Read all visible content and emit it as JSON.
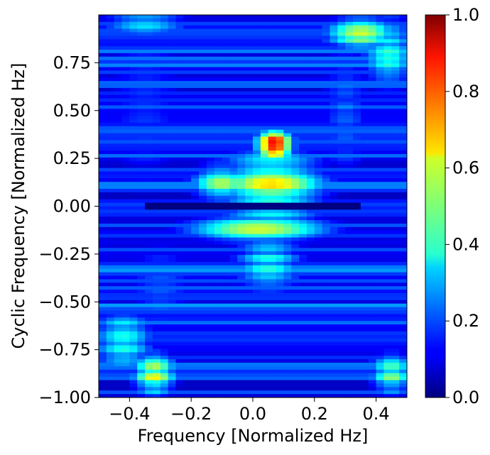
{
  "chart_data": {
    "type": "heatmap",
    "title": "",
    "xlabel": "Frequency [Normalized Hz]",
    "ylabel": "Cyclic Frequency [Normalized Hz]",
    "xlim": [
      -0.5,
      0.5
    ],
    "ylim": [
      -1.0,
      1.0
    ],
    "x_ticks": [
      -0.4,
      -0.2,
      0.0,
      0.2,
      0.4
    ],
    "x_tick_labels": [
      "−0.4",
      "−0.2",
      "0.0",
      "0.2",
      "0.4"
    ],
    "y_ticks": [
      0.75,
      0.5,
      0.25,
      0.0,
      -0.25,
      -0.5,
      -0.75,
      -1.0
    ],
    "y_tick_labels": [
      "0.75",
      "0.50",
      "0.25",
      "0.00",
      "−0.25",
      "−0.50",
      "−0.75",
      "−1.00"
    ],
    "colormap": "jet",
    "clim": [
      0.0,
      1.0
    ],
    "colorbar_ticks": [
      0.0,
      0.2,
      0.4,
      0.6,
      0.8,
      1.0
    ],
    "colorbar_tick_labels": [
      "0.0",
      "0.2",
      "0.4",
      "0.6",
      "0.8",
      "1.0"
    ],
    "grid": false,
    "features": [
      {
        "x": 0.07,
        "y": 0.32,
        "sx": 0.04,
        "sy": 0.05,
        "value": 0.98
      },
      {
        "x": 0.06,
        "y": 0.1,
        "sx": 0.12,
        "sy": 0.14,
        "value": 0.55
      },
      {
        "x": -0.1,
        "y": 0.12,
        "sx": 0.07,
        "sy": 0.08,
        "value": 0.45
      },
      {
        "x": 0.02,
        "y": -0.12,
        "sx": 0.16,
        "sy": 0.05,
        "value": 0.48
      },
      {
        "x": 0.05,
        "y": -0.3,
        "sx": 0.08,
        "sy": 0.12,
        "value": 0.35
      },
      {
        "x": 0.35,
        "y": 0.9,
        "sx": 0.08,
        "sy": 0.06,
        "value": 0.55
      },
      {
        "x": 0.44,
        "y": 0.8,
        "sx": 0.06,
        "sy": 0.14,
        "value": 0.38
      },
      {
        "x": -0.32,
        "y": -0.88,
        "sx": 0.05,
        "sy": 0.08,
        "value": 0.55
      },
      {
        "x": -0.42,
        "y": -0.7,
        "sx": 0.07,
        "sy": 0.12,
        "value": 0.4
      },
      {
        "x": 0.45,
        "y": -0.88,
        "sx": 0.05,
        "sy": 0.08,
        "value": 0.45
      },
      {
        "x": -0.35,
        "y": 0.95,
        "sx": 0.1,
        "sy": 0.05,
        "value": 0.32
      },
      {
        "x": -0.35,
        "y": 0.55,
        "sx": 0.1,
        "sy": 0.4,
        "value": 0.18
      },
      {
        "x": 0.3,
        "y": 0.5,
        "sx": 0.06,
        "sy": 0.3,
        "value": 0.22
      },
      {
        "x": -0.3,
        "y": -0.45,
        "sx": 0.08,
        "sy": 0.2,
        "value": 0.2
      }
    ],
    "background_value": 0.15,
    "zero_line_value": 0.0
  }
}
